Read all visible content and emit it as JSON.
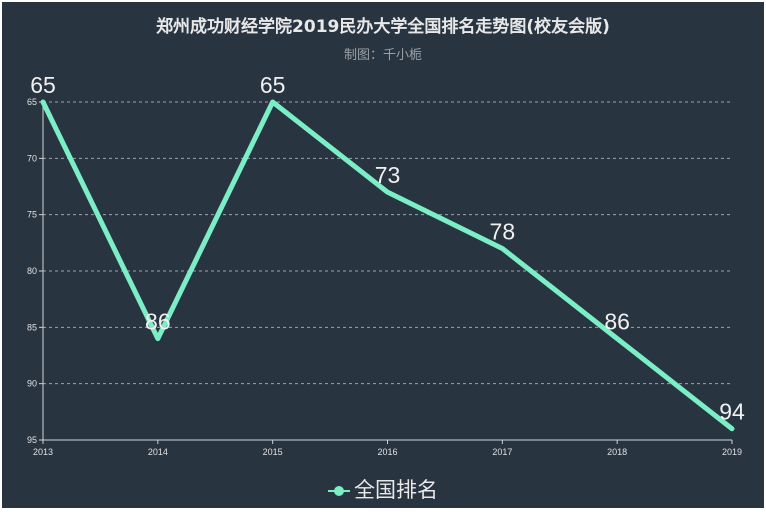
{
  "chart_data": {
    "type": "line",
    "title": "郑州成功财经学院2019民办大学全国排名走势图(校友会版)",
    "subtitle": "制图：千小栀",
    "categories": [
      "2013",
      "2014",
      "2015",
      "2016",
      "2017",
      "2018",
      "2019"
    ],
    "series": [
      {
        "name": "全国排名",
        "values": [
          65,
          86,
          65,
          73,
          78,
          86,
          94
        ]
      }
    ],
    "ylim": [
      65,
      95
    ],
    "y_inverted": true,
    "yticks": [
      65,
      70,
      75,
      80,
      85,
      90,
      95
    ],
    "grid": true,
    "legend_position": "bottom",
    "colors": {
      "line": "#7beec5",
      "background": "#293441"
    }
  }
}
